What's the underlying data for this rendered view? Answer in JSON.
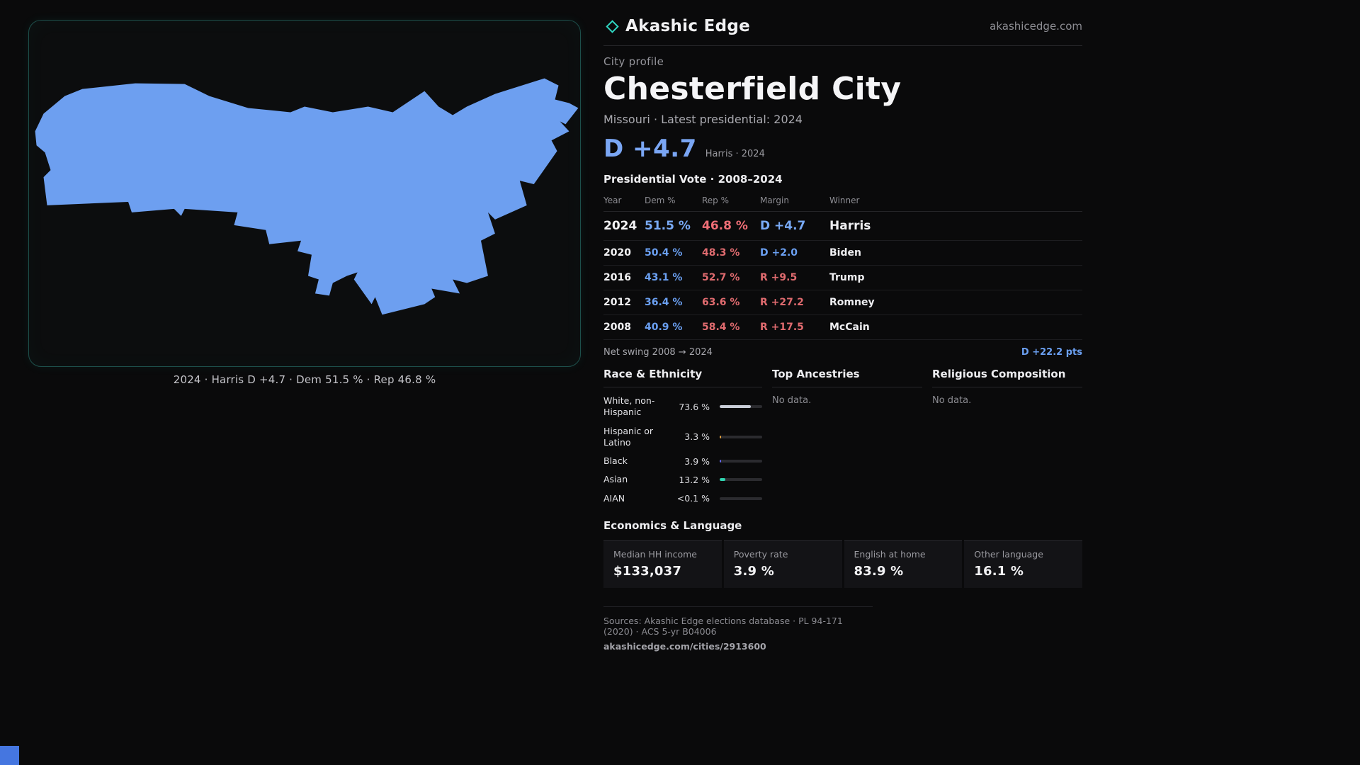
{
  "brand": {
    "name": "Akashic Edge",
    "domain": "akashicedge.com"
  },
  "map": {
    "caption": "2024 · Harris D +4.7 · Dem 51.5 % · Rep 46.8 %",
    "shape_fill": "#6d9ff0"
  },
  "profile": {
    "kicker": "City profile",
    "title": "Chesterfield City",
    "subtitle": "Missouri · Latest presidential: 2024",
    "headline_margin": "D +4.7",
    "headline_context": "Harris · 2024"
  },
  "vote_table": {
    "title": "Presidential Vote · 2008–2024",
    "columns": [
      "Year",
      "Dem %",
      "Rep %",
      "Margin",
      "Winner"
    ],
    "rows": [
      {
        "year": "2024",
        "dem": "51.5 %",
        "rep": "46.8 %",
        "margin": "D +4.7",
        "winner": "Harris"
      },
      {
        "year": "2020",
        "dem": "50.4 %",
        "rep": "48.3 %",
        "margin": "D +2.0",
        "winner": "Biden"
      },
      {
        "year": "2016",
        "dem": "43.1 %",
        "rep": "52.7 %",
        "margin": "R +9.5",
        "winner": "Trump"
      },
      {
        "year": "2012",
        "dem": "36.4 %",
        "rep": "63.6 %",
        "margin": "R +27.2",
        "winner": "Romney"
      },
      {
        "year": "2008",
        "dem": "40.9 %",
        "rep": "58.4 %",
        "margin": "R +17.5",
        "winner": "McCain"
      }
    ],
    "net_swing_label": "Net swing 2008 → 2024",
    "net_swing_value": "D +22.2 pts"
  },
  "demographics": {
    "race_title": "Race & Ethnicity",
    "ancestries_title": "Top Ancestries",
    "religion_title": "Religious Composition",
    "no_data": "No data.",
    "race_rows": [
      {
        "label": "White, non-Hispanic",
        "value": "73.6 %",
        "pct": 73.6,
        "color": "#c9cdd8"
      },
      {
        "label": "Hispanic or Latino",
        "value": "3.3 %",
        "pct": 3.3,
        "color": "#e8a33d"
      },
      {
        "label": "Black",
        "value": "3.9 %",
        "pct": 3.9,
        "color": "#6366f1"
      },
      {
        "label": "Asian",
        "value": "13.2 %",
        "pct": 13.2,
        "color": "#2fd4b0"
      },
      {
        "label": "AIAN",
        "value": "<0.1 %",
        "pct": 0,
        "color": "#8a8a90"
      }
    ]
  },
  "economics": {
    "title": "Economics & Language",
    "stats": [
      {
        "label": "Median HH income",
        "value": "$133,037"
      },
      {
        "label": "Poverty rate",
        "value": "3.9 %"
      },
      {
        "label": "English at home",
        "value": "83.9 %"
      },
      {
        "label": "Other language",
        "value": "16.1 %"
      }
    ]
  },
  "footer": {
    "sources": "Sources: Akashic Edge elections database · PL 94-171 (2020) · ACS 5-yr B04006",
    "permalink": "akashicedge.com/cities/2913600"
  }
}
